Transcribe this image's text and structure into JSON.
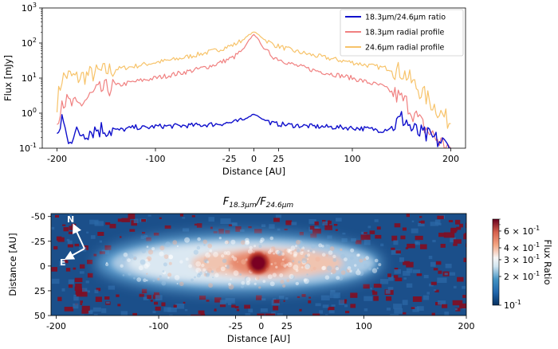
{
  "chart_data": [
    {
      "type": "line",
      "xlabel": "Distance [AU]",
      "ylabel": "Flux [mJy]",
      "yscale": "log",
      "ylim": [
        0.1,
        1000
      ],
      "xlim": [
        -215,
        215
      ],
      "xticks": [
        -200,
        -100,
        -25,
        0,
        25,
        100,
        200
      ],
      "xtick_labels": [
        "-200",
        "-100",
        "-25",
        "0",
        "25",
        "100",
        "200"
      ],
      "yticks": [
        0.1,
        1,
        10,
        100,
        1000
      ],
      "ytick_labels": [
        {
          "base": "10",
          "exp": "-1"
        },
        {
          "base": "10",
          "exp": "0"
        },
        {
          "base": "10",
          "exp": "1"
        },
        {
          "base": "10",
          "exp": "2"
        },
        {
          "base": "10",
          "exp": "3"
        }
      ],
      "legend_position": "top-right",
      "series": [
        {
          "name": "18.3μm/24.6μm ratio",
          "color": "#1010cc",
          "x": [
            -200,
            -195,
            -190,
            -180,
            -170,
            -160,
            -150,
            -140,
            -130,
            -120,
            -110,
            -100,
            -80,
            -60,
            -40,
            -20,
            -10,
            -5,
            0,
            5,
            10,
            20,
            40,
            60,
            80,
            100,
            120,
            130,
            140,
            150,
            155,
            160,
            170,
            180,
            190,
            200
          ],
          "y": [
            0.15,
            0.8,
            0.2,
            0.25,
            0.3,
            0.35,
            0.35,
            0.32,
            0.35,
            0.4,
            0.38,
            0.42,
            0.43,
            0.45,
            0.48,
            0.55,
            0.65,
            0.8,
            0.95,
            0.8,
            0.65,
            0.5,
            0.45,
            0.42,
            0.4,
            0.38,
            0.35,
            0.32,
            0.4,
            0.7,
            0.6,
            0.35,
            0.25,
            0.2,
            0.15,
            0.1
          ]
        },
        {
          "name": "18.3μm radial profile",
          "color": "#f08080",
          "x": [
            -200,
            -195,
            -190,
            -180,
            -170,
            -160,
            -150,
            -140,
            -130,
            -120,
            -110,
            -100,
            -80,
            -60,
            -40,
            -20,
            -10,
            -5,
            0,
            5,
            10,
            20,
            40,
            60,
            80,
            100,
            120,
            130,
            140,
            150,
            155,
            160,
            170,
            180,
            190,
            200
          ],
          "y": [
            0.6,
            2.5,
            2,
            1.5,
            2.5,
            4,
            5,
            6,
            7,
            8,
            9,
            10,
            13,
            17,
            24,
            40,
            70,
            120,
            180,
            120,
            70,
            40,
            24,
            17,
            13,
            10,
            7,
            6,
            4,
            2.5,
            2,
            1.2,
            0.5,
            0.25,
            0.15,
            0.1
          ]
        },
        {
          "name": "24.6μm radial profile",
          "color": "#f7c36a",
          "x": [
            -200,
            -195,
            -190,
            -180,
            -170,
            -160,
            -150,
            -140,
            -130,
            -120,
            -110,
            -100,
            -80,
            -60,
            -40,
            -20,
            -10,
            -5,
            0,
            5,
            10,
            20,
            40,
            60,
            80,
            100,
            120,
            130,
            140,
            150,
            155,
            160,
            170,
            180,
            190,
            200
          ],
          "y": [
            2,
            10,
            12,
            10,
            12,
            14,
            16,
            18,
            20,
            22,
            25,
            28,
            34,
            45,
            60,
            90,
            130,
            170,
            210,
            170,
            130,
            90,
            60,
            45,
            35,
            28,
            22,
            20,
            18,
            15,
            12,
            8,
            4,
            2,
            1,
            0.5
          ]
        }
      ]
    },
    {
      "type": "heatmap",
      "title_main": "F",
      "title_sub1": "18.3μm",
      "title_sep": "/",
      "title_sub2": "24.6μm",
      "xlabel": "Distance [AU]",
      "ylabel": "Distance [AU]",
      "xlim": [
        -205,
        200
      ],
      "ylim": [
        -53,
        50
      ],
      "xticks": [
        -200,
        -100,
        -25,
        0,
        25,
        100,
        200
      ],
      "xtick_labels": [
        "-200",
        "-100",
        "-25",
        "0",
        "25",
        "100",
        "200"
      ],
      "yticks": [
        -50,
        -25,
        0,
        25,
        50
      ],
      "ytick_labels": [
        "-50",
        "-25",
        "0",
        "25",
        "50"
      ],
      "colormap": "RdBu_r",
      "colorbar_label": "Flux Ratio",
      "colorbar_range": [
        0.1,
        0.8
      ],
      "colorbar_ticks": [
        {
          "value": 0.1,
          "base": "10",
          "exp": "-1",
          "mant": ""
        },
        {
          "value": 0.2,
          "base": "10",
          "exp": "-1",
          "mant": "2 × "
        },
        {
          "value": 0.3,
          "base": "10",
          "exp": "-1",
          "mant": "3 × "
        },
        {
          "value": 0.4,
          "base": "10",
          "exp": "-1",
          "mant": "4 × "
        },
        {
          "value": 0.6,
          "base": "10",
          "exp": "-1",
          "mant": "6 × "
        }
      ],
      "compass": {
        "north": "N",
        "east": "E"
      }
    }
  ]
}
